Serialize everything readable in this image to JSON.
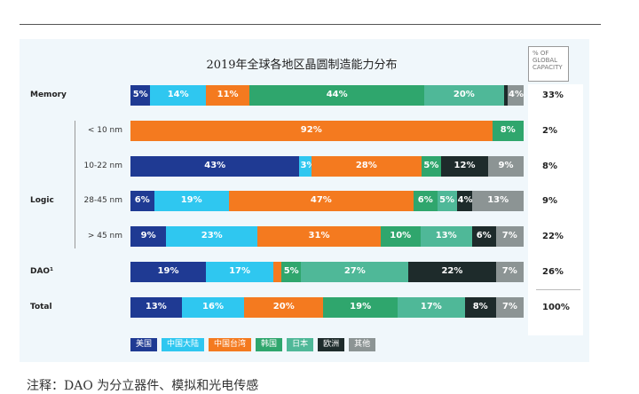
{
  "chart_data": {
    "type": "bar",
    "orientation": "horizontal-stacked",
    "title": "2019年全球各地区晶圆制造能力分布",
    "capacity_header": "% OF\nGLOBAL\nCAPACITY",
    "series": [
      {
        "name": "美国",
        "color": "#1f3a93"
      },
      {
        "name": "中国大陆",
        "color": "#2fc7f0"
      },
      {
        "name": "中国台湾",
        "color": "#f47a1f"
      },
      {
        "name": "韩国",
        "color": "#2fa66d"
      },
      {
        "name": "日本",
        "color": "#4fb898"
      },
      {
        "name": "欧洲",
        "color": "#1e2b2b"
      },
      {
        "name": "其他",
        "color": "#8c9494"
      }
    ],
    "rows": [
      {
        "group": "Memory",
        "sub": "",
        "capacity": "33%",
        "segments": [
          [
            "美国",
            5,
            "5%"
          ],
          [
            "中国大陆",
            14,
            "14%"
          ],
          [
            "中国台湾",
            11,
            "11%"
          ],
          [
            "韩国",
            44,
            "44%"
          ],
          [
            "日本",
            20,
            "20%"
          ],
          [
            "欧洲",
            1,
            ""
          ],
          [
            "其他",
            4,
            "4%"
          ]
        ]
      },
      {
        "group": "",
        "sub": "< 10 nm",
        "capacity": "2%",
        "segments": [
          [
            "中国台湾",
            92,
            "92%"
          ],
          [
            "韩国",
            8,
            "8%"
          ]
        ]
      },
      {
        "group": "",
        "sub": "10-22 nm",
        "capacity": "8%",
        "segments": [
          [
            "美国",
            43,
            "43%"
          ],
          [
            "中国大陆",
            3,
            "3%"
          ],
          [
            "中国台湾",
            28,
            "28%"
          ],
          [
            "韩国",
            5,
            "5%"
          ],
          [
            "欧洲",
            12,
            "12%"
          ],
          [
            "其他",
            9,
            "9%"
          ]
        ]
      },
      {
        "group": "Logic",
        "sub": "28-45 nm",
        "capacity": "9%",
        "segments": [
          [
            "美国",
            6,
            "6%"
          ],
          [
            "中国大陆",
            19,
            "19%"
          ],
          [
            "中国台湾",
            47,
            "47%"
          ],
          [
            "韩国",
            6,
            "6%"
          ],
          [
            "日本",
            5,
            "5%"
          ],
          [
            "欧洲",
            4,
            "4%"
          ],
          [
            "其他",
            13,
            "13%"
          ]
        ]
      },
      {
        "group": "",
        "sub": "> 45 nm",
        "capacity": "22%",
        "segments": [
          [
            "美国",
            9,
            "9%"
          ],
          [
            "中国大陆",
            23,
            "23%"
          ],
          [
            "中国台湾",
            31,
            "31%"
          ],
          [
            "韩国",
            10,
            "10%"
          ],
          [
            "日本",
            13,
            "13%"
          ],
          [
            "欧洲",
            6,
            "6%"
          ],
          [
            "其他",
            7,
            "7%"
          ]
        ]
      },
      {
        "group": "DAO¹",
        "sub": "",
        "capacity": "26%",
        "segments": [
          [
            "美国",
            19,
            "19%"
          ],
          [
            "中国大陆",
            17,
            "17%"
          ],
          [
            "中国台湾",
            2,
            ""
          ],
          [
            "韩国",
            5,
            "5%"
          ],
          [
            "日本",
            27,
            "27%"
          ],
          [
            "欧洲",
            22,
            "22%"
          ],
          [
            "其他",
            7,
            "7%"
          ]
        ]
      },
      {
        "group": "Total",
        "sub": "",
        "capacity": "100%",
        "segments": [
          [
            "美国",
            13,
            "13%"
          ],
          [
            "中国大陆",
            16,
            "16%"
          ],
          [
            "中国台湾",
            20,
            "20%"
          ],
          [
            "韩国",
            19,
            "19%"
          ],
          [
            "日本",
            17,
            "17%"
          ],
          [
            "欧洲",
            8,
            "8%"
          ],
          [
            "其他",
            7,
            "7%"
          ]
        ]
      }
    ]
  },
  "note": "注释：DAO 为分立器件、模拟和光电传感"
}
